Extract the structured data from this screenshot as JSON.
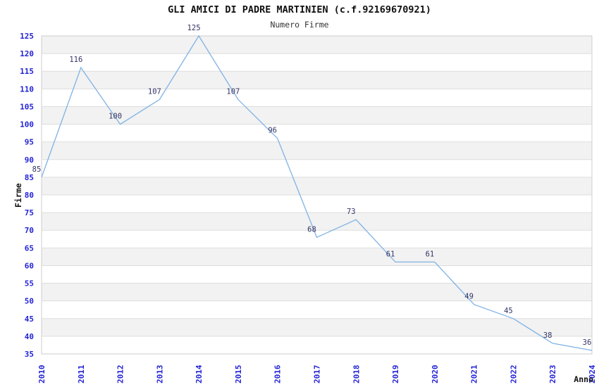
{
  "chart_data": {
    "type": "line",
    "title": "GLI AMICI DI PADRE MARTINIEN (c.f.92169670921)",
    "subtitle": "Numero Firme",
    "xlabel": "Anno",
    "ylabel": "Firme",
    "categories": [
      "2010",
      "2011",
      "2012",
      "2013",
      "2014",
      "2015",
      "2016",
      "2017",
      "2018",
      "2019",
      "2020",
      "2021",
      "2022",
      "2023",
      "2024"
    ],
    "series": [
      {
        "name": "Numero Firme",
        "values": [
          85,
          116,
          100,
          107,
          125,
          107,
          96,
          68,
          73,
          61,
          61,
          49,
          45,
          38,
          36
        ]
      }
    ],
    "ylim": [
      35,
      125
    ],
    "yticks": [
      35,
      40,
      45,
      50,
      55,
      60,
      65,
      70,
      75,
      80,
      85,
      90,
      95,
      100,
      105,
      110,
      115,
      120,
      125
    ],
    "grid": "horizontal",
    "band_style": "alternating-horizontal",
    "legend": "none",
    "data_labels_visible": true,
    "colors": {
      "line": "#7FB2E5",
      "tick_label": "#2323D6",
      "data_label": "#333366",
      "band": "#F2F2F2",
      "gridline": "#DDDDDD",
      "plot_border": "#CCCCCC",
      "title": "#111111",
      "subtitle": "#333333",
      "axis_title": "#111111",
      "background": "#FFFFFF"
    }
  }
}
